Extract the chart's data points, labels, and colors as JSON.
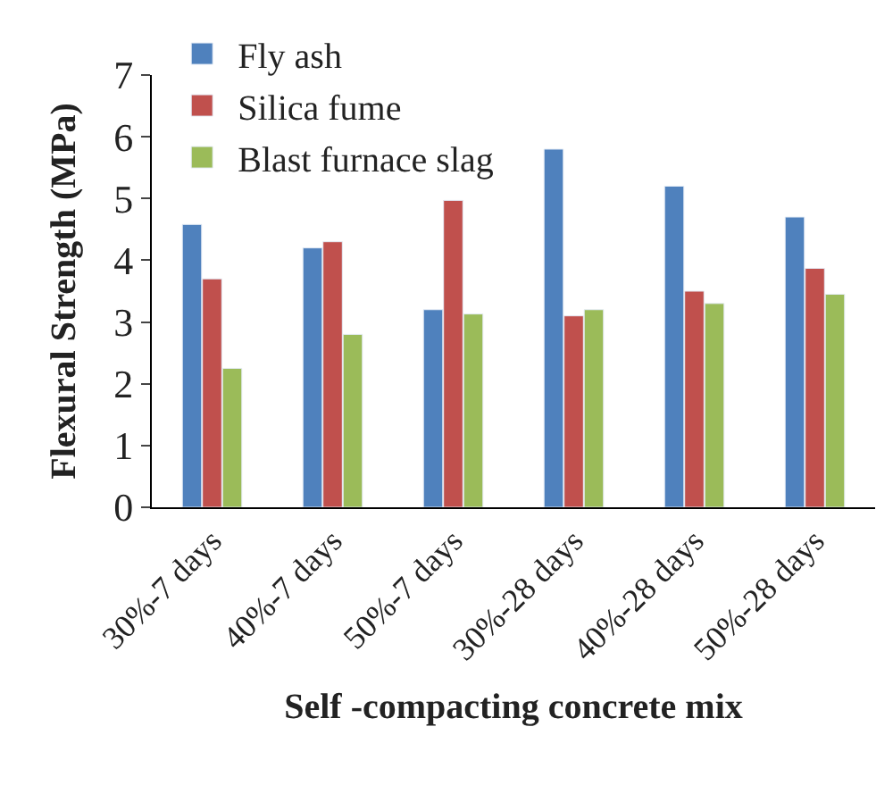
{
  "chart_data": {
    "type": "bar",
    "xlabel": "Self -compacting concrete mix",
    "ylabel": "Flexural Strength (MPa)",
    "categories": [
      "30%-7 days",
      "40%-7 days",
      "50%-7 days",
      "30%-28 days",
      "40%-28 days",
      "50%-28 days"
    ],
    "series": [
      {
        "name": "Fly ash",
        "color": "#4f81bd",
        "values": [
          4.58,
          4.2,
          3.2,
          5.8,
          5.2,
          4.7
        ]
      },
      {
        "name": "Silica fume",
        "color": "#c0504d",
        "values": [
          3.7,
          4.3,
          4.97,
          3.1,
          3.5,
          3.87
        ]
      },
      {
        "name": "Blast furnace slag",
        "color": "#9bbb59",
        "values": [
          2.25,
          2.8,
          3.13,
          3.2,
          3.3,
          3.45
        ]
      }
    ],
    "ylim": [
      0,
      7
    ],
    "yticks": [
      0,
      1,
      2,
      3,
      4,
      5,
      6,
      7
    ],
    "legend": "top left"
  }
}
